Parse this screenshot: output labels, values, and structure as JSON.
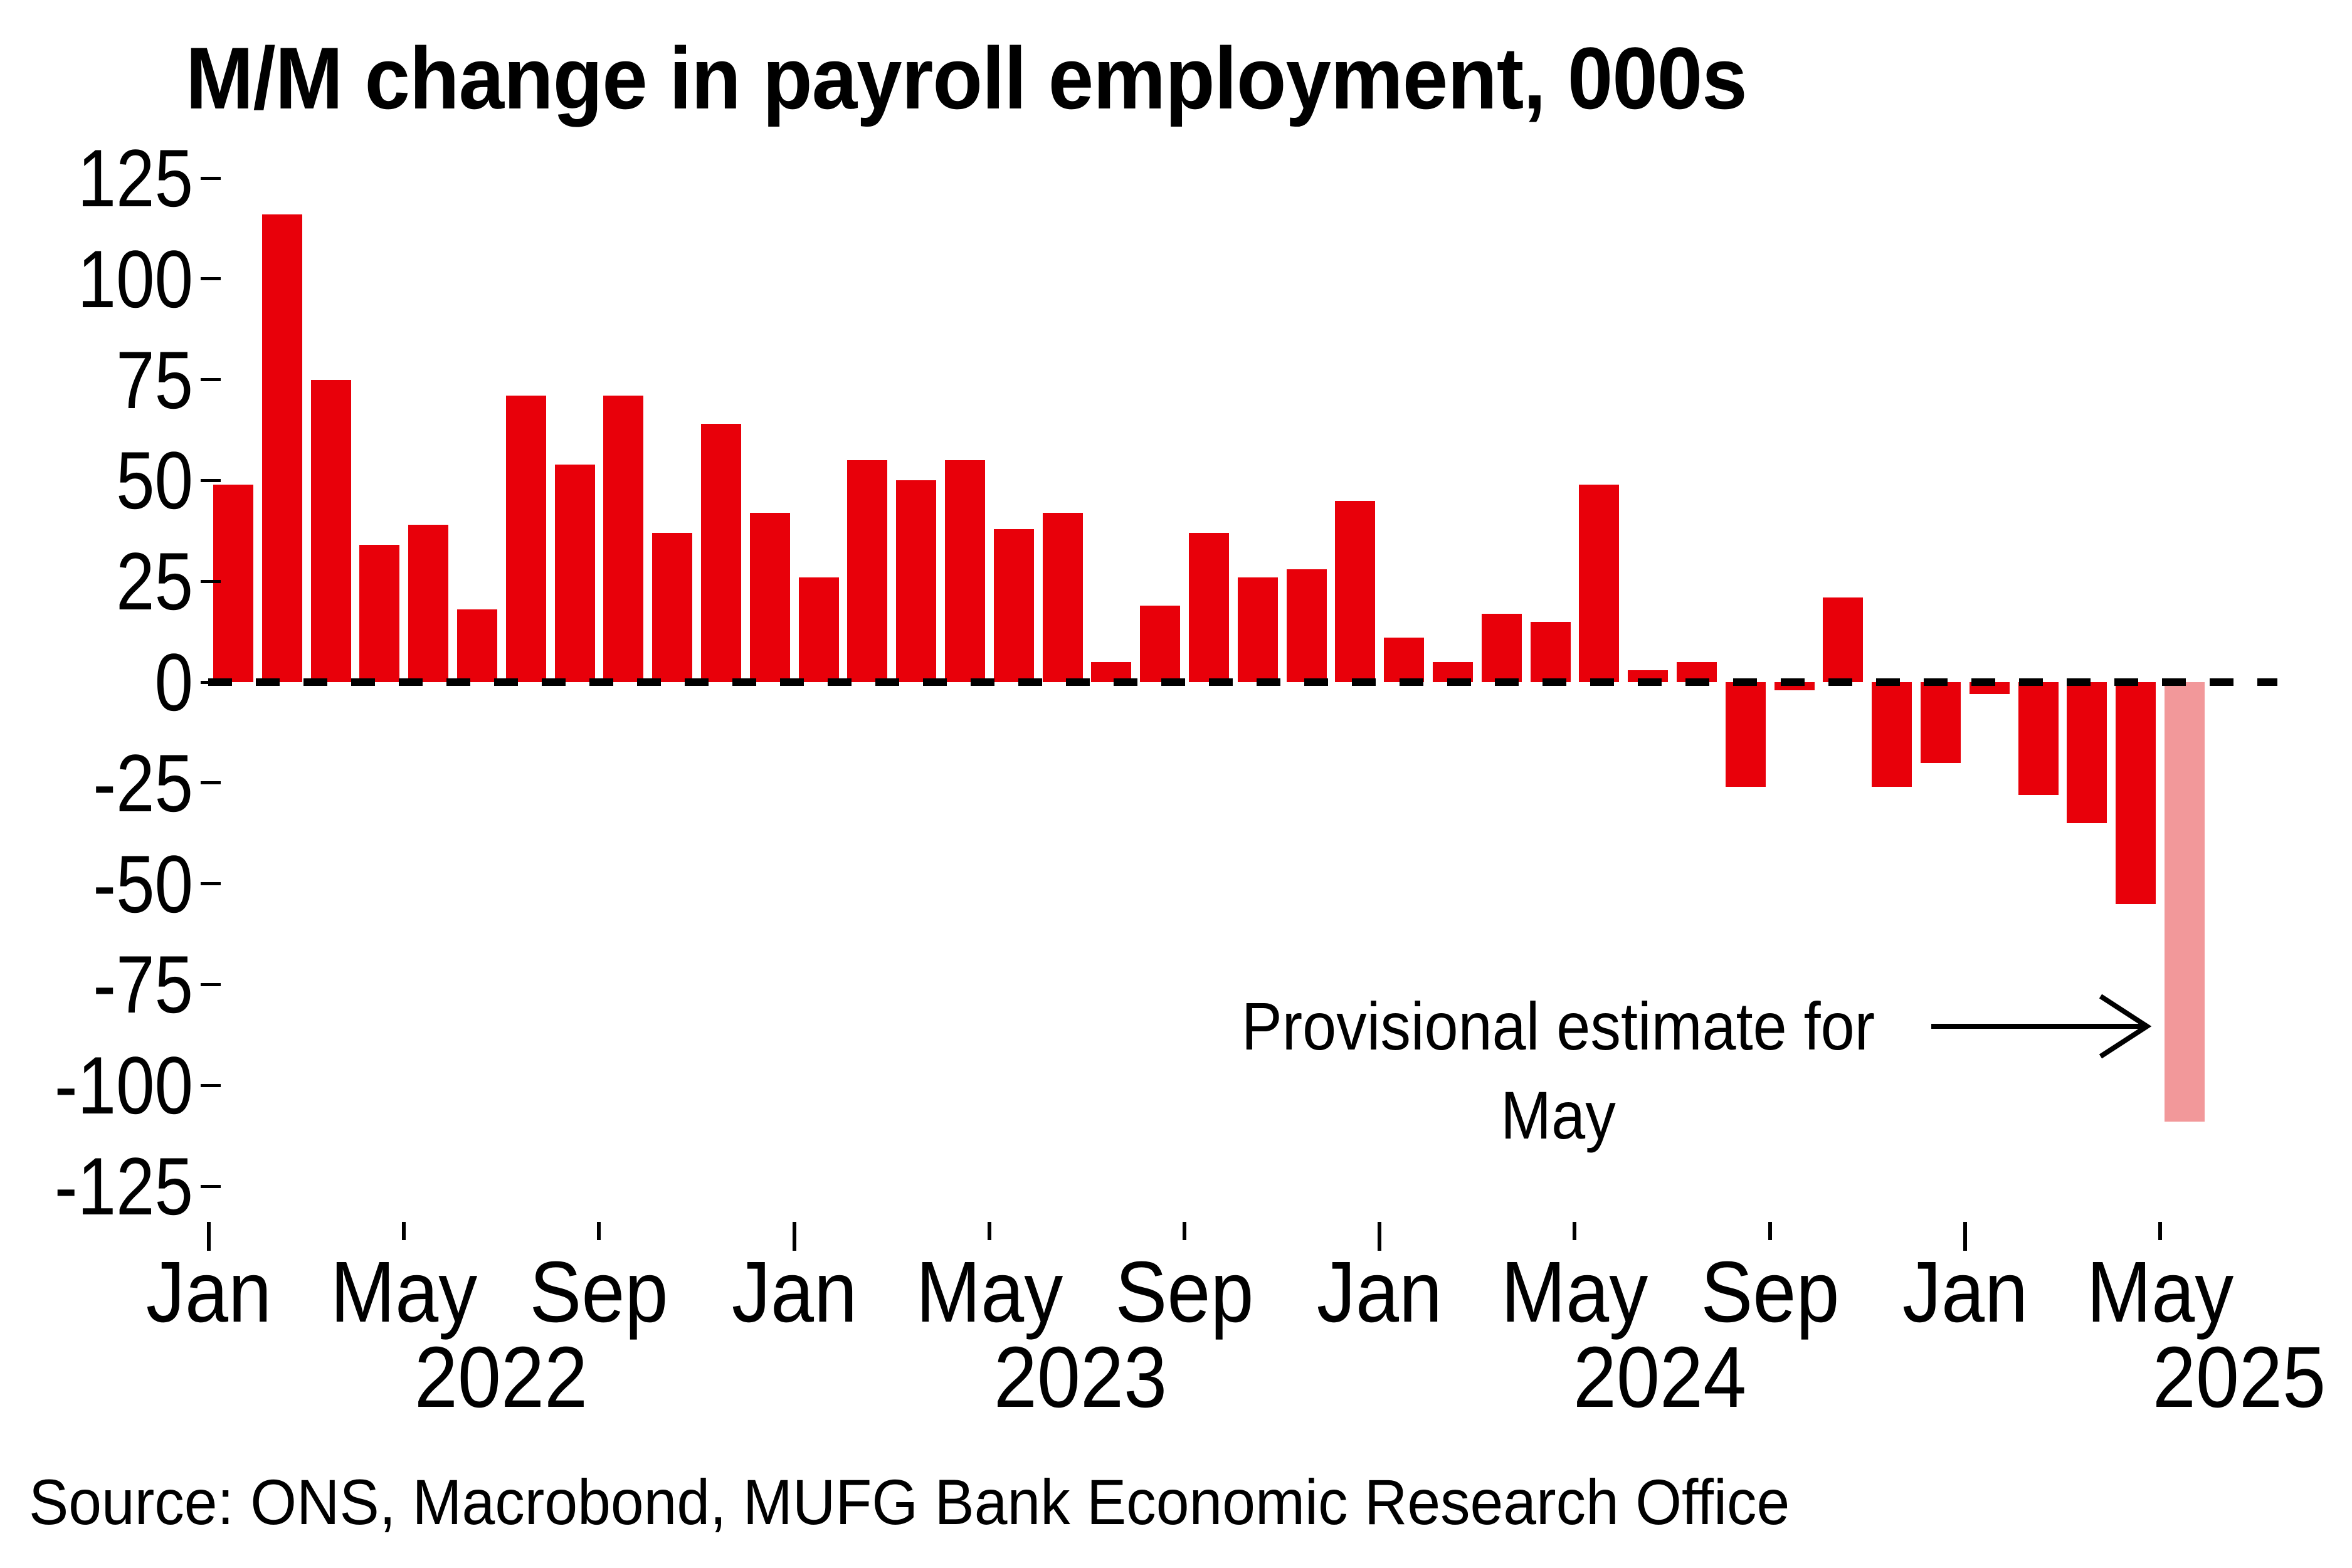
{
  "chart_data": {
    "type": "bar",
    "title": "M/M change in payroll employment, 000s",
    "source": "Source: ONS, Macrobond, MUFG Bank Economic Research Office",
    "ylabel": "",
    "xlabel": "",
    "ylim": [
      -125,
      125
    ],
    "grid": false,
    "zero_line": "dashed-black",
    "annotation": {
      "line1": "Provisional estimate for",
      "line2": "May",
      "arrow": "points-right-to-provisional-bar"
    },
    "colors": {
      "bar": "#e8000a",
      "provisional_bar": "#f2989a",
      "text": "#000000",
      "background": "#ffffff"
    },
    "y_axis": {
      "ticks": [
        125,
        100,
        75,
        50,
        25,
        0,
        -25,
        -50,
        -75,
        -100,
        -125
      ]
    },
    "x_axis": {
      "tick_months": [
        "Jan",
        "May",
        "Sep"
      ],
      "major_tick_month": "Jan",
      "years": [
        "2022",
        "2023",
        "2024",
        "2025"
      ]
    },
    "series": [
      {
        "month": "Jan",
        "year": "2022",
        "value": 49,
        "provisional": false
      },
      {
        "month": "Feb",
        "year": "2022",
        "value": 116,
        "provisional": false
      },
      {
        "month": "Mar",
        "year": "2022",
        "value": 75,
        "provisional": false
      },
      {
        "month": "Apr",
        "year": "2022",
        "value": 34,
        "provisional": false
      },
      {
        "month": "May",
        "year": "2022",
        "value": 39,
        "provisional": false
      },
      {
        "month": "Jun",
        "year": "2022",
        "value": 18,
        "provisional": false
      },
      {
        "month": "Jul",
        "year": "2022",
        "value": 71,
        "provisional": false
      },
      {
        "month": "Aug",
        "year": "2022",
        "value": 54,
        "provisional": false
      },
      {
        "month": "Sep",
        "year": "2022",
        "value": 71,
        "provisional": false
      },
      {
        "month": "Oct",
        "year": "2022",
        "value": 37,
        "provisional": false
      },
      {
        "month": "Nov",
        "year": "2022",
        "value": 64,
        "provisional": false
      },
      {
        "month": "Dec",
        "year": "2022",
        "value": 42,
        "provisional": false
      },
      {
        "month": "Jan",
        "year": "2023",
        "value": 26,
        "provisional": false
      },
      {
        "month": "Feb",
        "year": "2023",
        "value": 55,
        "provisional": false
      },
      {
        "month": "Mar",
        "year": "2023",
        "value": 50,
        "provisional": false
      },
      {
        "month": "Apr",
        "year": "2023",
        "value": 55,
        "provisional": false
      },
      {
        "month": "May",
        "year": "2023",
        "value": 38,
        "provisional": false
      },
      {
        "month": "Jun",
        "year": "2023",
        "value": 42,
        "provisional": false
      },
      {
        "month": "Jul",
        "year": "2023",
        "value": 5,
        "provisional": false
      },
      {
        "month": "Aug",
        "year": "2023",
        "value": 19,
        "provisional": false
      },
      {
        "month": "Sep",
        "year": "2023",
        "value": 37,
        "provisional": false
      },
      {
        "month": "Oct",
        "year": "2023",
        "value": 26,
        "provisional": false
      },
      {
        "month": "Nov",
        "year": "2023",
        "value": 28,
        "provisional": false
      },
      {
        "month": "Dec",
        "year": "2023",
        "value": 45,
        "provisional": false
      },
      {
        "month": "Jan",
        "year": "2024",
        "value": 11,
        "provisional": false
      },
      {
        "month": "Feb",
        "year": "2024",
        "value": 5,
        "provisional": false
      },
      {
        "month": "Mar",
        "year": "2024",
        "value": 17,
        "provisional": false
      },
      {
        "month": "Apr",
        "year": "2024",
        "value": 15,
        "provisional": false
      },
      {
        "month": "May",
        "year": "2024",
        "value": 49,
        "provisional": false
      },
      {
        "month": "Jun",
        "year": "2024",
        "value": 3,
        "provisional": false
      },
      {
        "month": "Jul",
        "year": "2024",
        "value": 5,
        "provisional": false
      },
      {
        "month": "Aug",
        "year": "2024",
        "value": -26,
        "provisional": false
      },
      {
        "month": "Sep",
        "year": "2024",
        "value": -2,
        "provisional": false
      },
      {
        "month": "Oct",
        "year": "2024",
        "value": 21,
        "provisional": false
      },
      {
        "month": "Nov",
        "year": "2024",
        "value": -26,
        "provisional": false
      },
      {
        "month": "Dec",
        "year": "2024",
        "value": -20,
        "provisional": false
      },
      {
        "month": "Jan",
        "year": "2025",
        "value": -3,
        "provisional": false
      },
      {
        "month": "Feb",
        "year": "2025",
        "value": -28,
        "provisional": false
      },
      {
        "month": "Mar",
        "year": "2025",
        "value": -35,
        "provisional": false
      },
      {
        "month": "Apr",
        "year": "2025",
        "value": -55,
        "provisional": false
      },
      {
        "month": "May",
        "year": "2025",
        "value": -109,
        "provisional": true
      }
    ]
  }
}
